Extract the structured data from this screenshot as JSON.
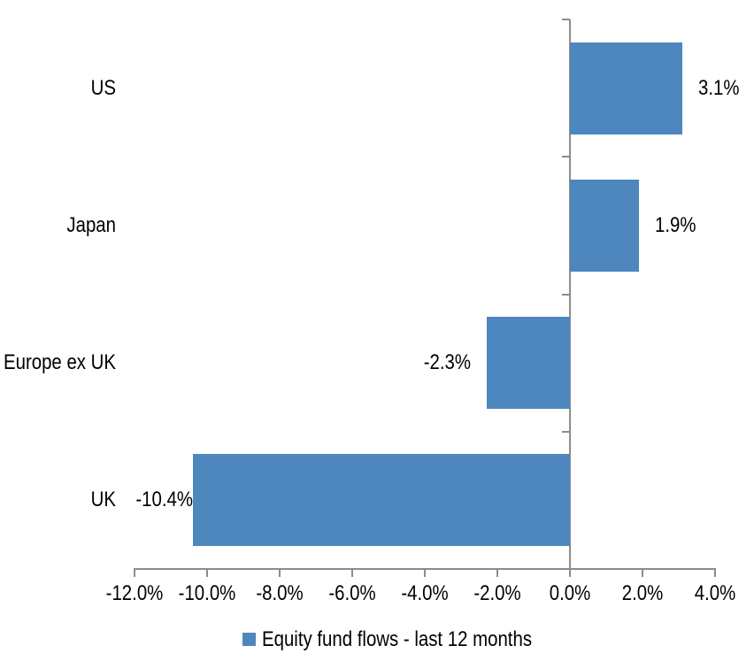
{
  "chart_data": {
    "type": "bar",
    "orientation": "horizontal",
    "title": "",
    "categories": [
      "US",
      "Japan",
      "Europe ex UK",
      "UK"
    ],
    "series": [
      {
        "name": "Equity fund flows - last 12 months",
        "values": [
          3.1,
          1.9,
          -2.3,
          -10.4
        ]
      }
    ],
    "data_labels": [
      "3.1%",
      "1.9%",
      "-2.3%",
      "-10.4%"
    ],
    "xlim": [
      -12,
      4
    ],
    "x_ticks": [
      -12,
      -10,
      -8,
      -6,
      -4,
      -2,
      0,
      2,
      4
    ],
    "x_tick_labels": [
      "-12.0%",
      "-10.0%",
      "-8.0%",
      "-6.0%",
      "-4.0%",
      "-2.0%",
      "0.0%",
      "2.0%",
      "4.0%"
    ],
    "grid": false,
    "legend": {
      "position": "bottom",
      "label": "Equity fund flows - last 12 months"
    },
    "colors": {
      "bar": "#4E86BE",
      "axis": "#8C8C8C",
      "text": "#000000",
      "background": "#FFFFFF"
    }
  }
}
